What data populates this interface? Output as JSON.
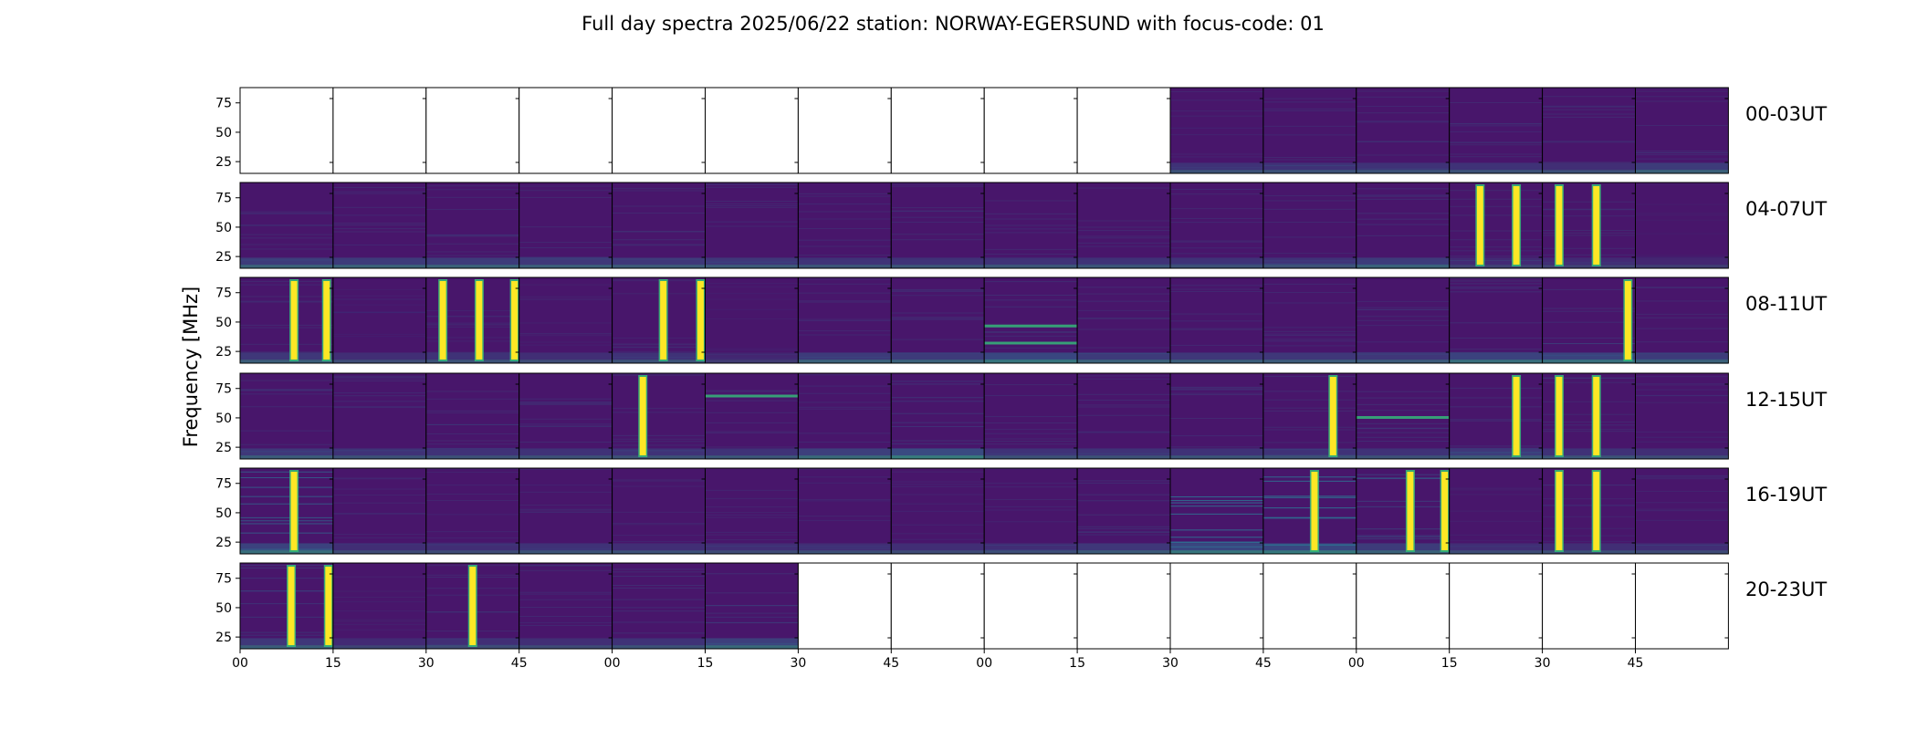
{
  "chart_data": {
    "type": "heatmap",
    "title": "Full day spectra 2025/06/22 station: NORWAY-EGERSUND with focus-code: 01",
    "ylabel": "Frequency [MHz]",
    "xlabel": "",
    "ylim": [
      15,
      88
    ],
    "y_ticks": [
      "75",
      "50",
      "25"
    ],
    "x_tick_labels": [
      "00",
      "15",
      "30",
      "45",
      "00",
      "15",
      "30",
      "45",
      "00",
      "15",
      "30",
      "45",
      "00",
      "15",
      "30",
      "45"
    ],
    "colormap": [
      "#440154",
      "#31688e",
      "#35b779",
      "#fde725"
    ],
    "background_color": "#48166b",
    "rows": [
      {
        "label": "00-03UT",
        "panels": [
          {
            "empty": true
          },
          {
            "empty": true
          },
          {
            "empty": true
          },
          {
            "empty": true
          },
          {
            "empty": true
          },
          {
            "empty": true
          },
          {
            "empty": true
          },
          {
            "empty": true
          },
          {
            "empty": true
          },
          {
            "empty": true
          },
          {
            "tint": 0.08,
            "low_band": 0.35
          },
          {
            "tint": 0.1,
            "low_band": 0.35
          },
          {
            "tint": 0.1,
            "low_band": 0.35
          },
          {
            "tint": 0.1,
            "low_band": 0.35
          },
          {
            "tint": 0.1,
            "low_band": 0.3
          },
          {
            "tint": 0.1,
            "low_band": 0.45
          }
        ]
      },
      {
        "label": "04-07UT",
        "panels": [
          {
            "tint": 0.1,
            "low_band": 0.45
          },
          {
            "tint": 0.1,
            "low_band": 0.45
          },
          {
            "tint": 0.1,
            "low_band": 0.45
          },
          {
            "tint": 0.1,
            "low_band": 0.4
          },
          {
            "tint": 0.1,
            "low_band": 0.4
          },
          {
            "tint": 0.1,
            "low_band": 0.4
          },
          {
            "tint": 0.1,
            "low_band": 0.35
          },
          {
            "tint": 0.1,
            "low_band": 0.35
          },
          {
            "tint": 0.1,
            "low_band": 0.35
          },
          {
            "tint": 0.1,
            "low_band": 0.35
          },
          {
            "tint": 0.1,
            "low_band": 0.35
          },
          {
            "tint": 0.1,
            "low_band": 0.35
          },
          {
            "tint": 0.12,
            "low_band": 0.45
          },
          {
            "tint": 0.1,
            "low_band": 0.25,
            "bursts": [
              0.33,
              0.72
            ]
          },
          {
            "tint": 0.1,
            "low_band": 0.25,
            "bursts": [
              0.18,
              0.58
            ]
          },
          {
            "tint": 0.04,
            "low_band": 0.2
          }
        ]
      },
      {
        "label": "08-11UT",
        "panels": [
          {
            "tint": 0.1,
            "low_band": 0.4,
            "bursts": [
              0.58,
              0.93
            ]
          },
          {
            "tint": 0.05,
            "low_band": 0.3
          },
          {
            "tint": 0.08,
            "low_band": 0.35,
            "bursts": [
              0.18,
              0.57,
              0.95
            ]
          },
          {
            "tint": 0.06,
            "low_band": 0.3
          },
          {
            "tint": 0.08,
            "low_band": 0.35,
            "bursts": [
              0.55,
              0.95
            ]
          },
          {
            "tint": 0.05,
            "low_band": 0.2
          },
          {
            "tint": 0.1,
            "low_band": 0.45
          },
          {
            "tint": 0.1,
            "low_band": 0.45
          },
          {
            "tint": 0.12,
            "low_band": 0.6,
            "lines": [
              0.25,
              0.45
            ]
          },
          {
            "tint": 0.1,
            "low_band": 0.45
          },
          {
            "tint": 0.1,
            "low_band": 0.4
          },
          {
            "tint": 0.1,
            "low_band": 0.4
          },
          {
            "tint": 0.1,
            "low_band": 0.4
          },
          {
            "tint": 0.12,
            "low_band": 0.55
          },
          {
            "tint": 0.12,
            "low_band": 0.55,
            "bursts": [
              0.92
            ]
          },
          {
            "tint": 0.1,
            "low_band": 0.45
          }
        ]
      },
      {
        "label": "12-15UT",
        "panels": [
          {
            "tint": 0.1,
            "low_band": 0.4
          },
          {
            "tint": 0.1,
            "low_band": 0.35
          },
          {
            "tint": 0.1,
            "low_band": 0.35
          },
          {
            "tint": 0.1,
            "low_band": 0.35
          },
          {
            "tint": 0.1,
            "low_band": 0.35,
            "bursts": [
              0.33
            ]
          },
          {
            "tint": 0.1,
            "low_band": 0.35,
            "lines": [
              0.75
            ]
          },
          {
            "tint": 0.1,
            "low_band": 0.5
          },
          {
            "tint": 0.15,
            "low_band": 0.65
          },
          {
            "tint": 0.1,
            "low_band": 0.35
          },
          {
            "tint": 0.1,
            "low_band": 0.35
          },
          {
            "tint": 0.1,
            "low_band": 0.35
          },
          {
            "tint": 0.1,
            "low_band": 0.35,
            "bursts": [
              0.75
            ]
          },
          {
            "tint": 0.12,
            "low_band": 0.35,
            "lines": [
              0.5
            ]
          },
          {
            "tint": 0.12,
            "low_band": 0.4,
            "bursts": [
              0.72
            ]
          },
          {
            "tint": 0.1,
            "low_band": 0.35,
            "bursts": [
              0.18,
              0.58
            ]
          },
          {
            "tint": 0.08,
            "low_band": 0.3
          }
        ]
      },
      {
        "label": "16-19UT",
        "panels": [
          {
            "tint": 0.35,
            "low_band": 0.55,
            "bursts": [
              0.58
            ]
          },
          {
            "tint": 0.08,
            "low_band": 0.3
          },
          {
            "tint": 0.08,
            "low_band": 0.3
          },
          {
            "tint": 0.08,
            "low_band": 0.35
          },
          {
            "tint": 0.08,
            "low_band": 0.3
          },
          {
            "tint": 0.08,
            "low_band": 0.3
          },
          {
            "tint": 0.08,
            "low_band": 0.3
          },
          {
            "tint": 0.08,
            "low_band": 0.3
          },
          {
            "tint": 0.08,
            "low_band": 0.3
          },
          {
            "tint": 0.12,
            "low_band": 0.4
          },
          {
            "tint": 0.55,
            "low_band": 0.6
          },
          {
            "tint": 0.5,
            "low_band": 0.6,
            "bursts": [
              0.55
            ]
          },
          {
            "tint": 0.2,
            "low_band": 0.45,
            "bursts": [
              0.58,
              0.95
            ]
          },
          {
            "tint": 0.06,
            "low_band": 0.3
          },
          {
            "tint": 0.08,
            "low_band": 0.3,
            "bursts": [
              0.18,
              0.58
            ]
          },
          {
            "tint": 0.08,
            "low_band": 0.3
          }
        ]
      },
      {
        "label": "20-23UT",
        "panels": [
          {
            "tint": 0.15,
            "low_band": 0.4,
            "bursts": [
              0.55,
              0.95
            ]
          },
          {
            "tint": 0.06,
            "low_band": 0.25
          },
          {
            "tint": 0.1,
            "low_band": 0.3,
            "bursts": [
              0.5
            ]
          },
          {
            "tint": 0.1,
            "low_band": 0.3
          },
          {
            "tint": 0.12,
            "low_band": 0.35
          },
          {
            "tint": 0.12,
            "low_band": 0.5
          },
          {
            "empty": true
          },
          {
            "empty": true
          },
          {
            "empty": true
          },
          {
            "empty": true
          },
          {
            "empty": true
          },
          {
            "empty": true
          },
          {
            "empty": true
          },
          {
            "empty": true
          },
          {
            "empty": true
          },
          {
            "empty": true
          }
        ]
      }
    ]
  }
}
